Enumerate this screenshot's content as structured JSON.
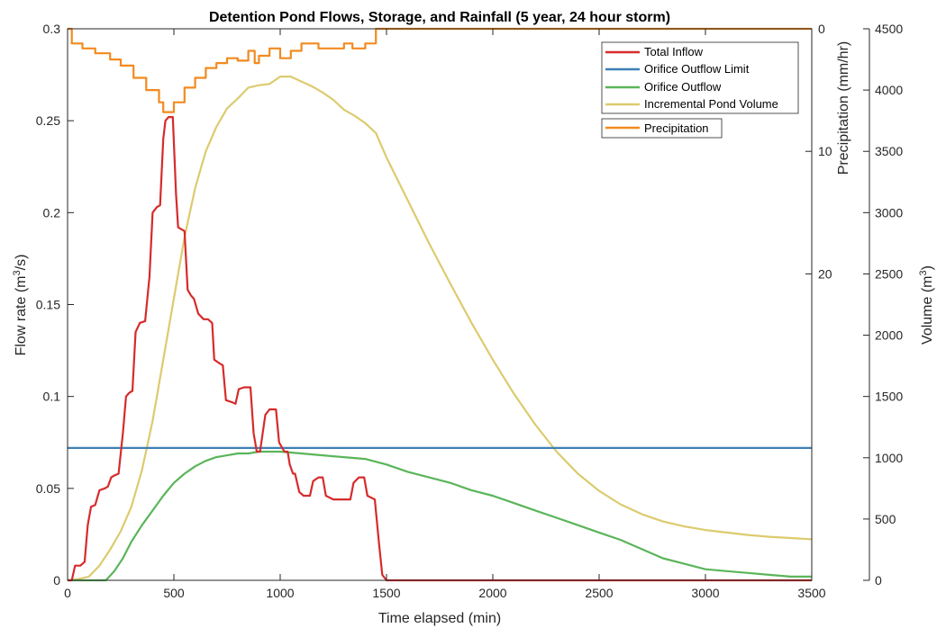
{
  "chart_data": {
    "type": "line",
    "title": "Detention Pond Flows, Storage, and Rainfall (5 year, 24 hour storm)",
    "xlabel": "Time elapsed (min)",
    "xlim": [
      0,
      3500
    ],
    "x_ticks": [
      "0",
      "500",
      "1000",
      "1500",
      "2000",
      "2500",
      "3000",
      "3500"
    ],
    "y_left": {
      "label_main": "Flow rate (m",
      "label_sup": "3",
      "label_tail": "/s)",
      "ylim": [
        0,
        0.3
      ],
      "ticks": [
        "0",
        "0.05",
        "0.1",
        "0.15",
        "0.2",
        "0.25",
        "0.3"
      ]
    },
    "y_precip": {
      "label": "Precipitation (mm/hr)",
      "ylim": [
        0,
        45
      ],
      "reversed": true,
      "ticks": [
        "0",
        "10",
        "20"
      ]
    },
    "y_right": {
      "label_main": "Volume (m",
      "label_sup": "3",
      "label_tail": ")",
      "ylim": [
        0,
        4500
      ],
      "ticks": [
        "0",
        "500",
        "1000",
        "1500",
        "2000",
        "2500",
        "3000",
        "3500",
        "4000",
        "4500"
      ]
    },
    "grid": false,
    "legend_position": "top-right",
    "legend_main": [
      "Total Inflow",
      "Orifice Outflow Limit",
      "Orifice Outflow",
      "Incremental Pond Volume"
    ],
    "legend_precip": [
      "Precipitation"
    ],
    "series": [
      {
        "name": "Total Inflow",
        "axis": "left",
        "color": "#d62b2b",
        "points": [
          [
            0,
            0
          ],
          [
            20,
            0
          ],
          [
            35,
            0.008
          ],
          [
            60,
            0.008
          ],
          [
            80,
            0.01
          ],
          [
            95,
            0.03
          ],
          [
            110,
            0.04
          ],
          [
            130,
            0.041
          ],
          [
            150,
            0.049
          ],
          [
            175,
            0.05
          ],
          [
            190,
            0.051
          ],
          [
            205,
            0.056
          ],
          [
            220,
            0.057
          ],
          [
            240,
            0.058
          ],
          [
            260,
            0.08
          ],
          [
            275,
            0.1
          ],
          [
            290,
            0.102
          ],
          [
            305,
            0.103
          ],
          [
            320,
            0.135
          ],
          [
            340,
            0.14
          ],
          [
            365,
            0.141
          ],
          [
            385,
            0.165
          ],
          [
            400,
            0.2
          ],
          [
            420,
            0.203
          ],
          [
            435,
            0.204
          ],
          [
            450,
            0.24
          ],
          [
            460,
            0.25
          ],
          [
            475,
            0.252
          ],
          [
            495,
            0.252
          ],
          [
            510,
            0.21
          ],
          [
            520,
            0.192
          ],
          [
            550,
            0.19
          ],
          [
            565,
            0.158
          ],
          [
            580,
            0.155
          ],
          [
            595,
            0.153
          ],
          [
            615,
            0.145
          ],
          [
            640,
            0.142
          ],
          [
            660,
            0.142
          ],
          [
            680,
            0.14
          ],
          [
            690,
            0.12
          ],
          [
            715,
            0.118
          ],
          [
            730,
            0.117
          ],
          [
            745,
            0.098
          ],
          [
            770,
            0.097
          ],
          [
            790,
            0.096
          ],
          [
            805,
            0.104
          ],
          [
            830,
            0.105
          ],
          [
            860,
            0.105
          ],
          [
            875,
            0.08
          ],
          [
            890,
            0.07
          ],
          [
            905,
            0.07
          ],
          [
            930,
            0.09
          ],
          [
            950,
            0.093
          ],
          [
            980,
            0.093
          ],
          [
            995,
            0.075
          ],
          [
            1020,
            0.07
          ],
          [
            1035,
            0.07
          ],
          [
            1045,
            0.063
          ],
          [
            1060,
            0.058
          ],
          [
            1070,
            0.058
          ],
          [
            1090,
            0.048
          ],
          [
            1110,
            0.046
          ],
          [
            1140,
            0.046
          ],
          [
            1155,
            0.054
          ],
          [
            1180,
            0.056
          ],
          [
            1200,
            0.056
          ],
          [
            1215,
            0.046
          ],
          [
            1250,
            0.044
          ],
          [
            1330,
            0.044
          ],
          [
            1345,
            0.053
          ],
          [
            1370,
            0.056
          ],
          [
            1395,
            0.056
          ],
          [
            1410,
            0.046
          ],
          [
            1445,
            0.044
          ],
          [
            1465,
            0.02
          ],
          [
            1480,
            0.003
          ],
          [
            1500,
            0
          ],
          [
            3500,
            0
          ]
        ]
      },
      {
        "name": "Orifice Outflow Limit",
        "axis": "left",
        "color": "#3e7fb5",
        "points": [
          [
            0,
            0.072
          ],
          [
            3500,
            0.072
          ]
        ]
      },
      {
        "name": "Orifice Outflow",
        "axis": "left",
        "color": "#5ab55a",
        "points": [
          [
            0,
            0
          ],
          [
            180,
            0
          ],
          [
            220,
            0.005
          ],
          [
            260,
            0.012
          ],
          [
            300,
            0.021
          ],
          [
            350,
            0.03
          ],
          [
            400,
            0.038
          ],
          [
            450,
            0.046
          ],
          [
            500,
            0.053
          ],
          [
            550,
            0.058
          ],
          [
            600,
            0.062
          ],
          [
            650,
            0.065
          ],
          [
            700,
            0.067
          ],
          [
            750,
            0.068
          ],
          [
            800,
            0.069
          ],
          [
            850,
            0.069
          ],
          [
            900,
            0.07
          ],
          [
            950,
            0.07
          ],
          [
            1000,
            0.07
          ],
          [
            1100,
            0.069
          ],
          [
            1200,
            0.068
          ],
          [
            1300,
            0.067
          ],
          [
            1400,
            0.066
          ],
          [
            1500,
            0.063
          ],
          [
            1600,
            0.059
          ],
          [
            1700,
            0.056
          ],
          [
            1800,
            0.053
          ],
          [
            1900,
            0.049
          ],
          [
            2000,
            0.046
          ],
          [
            2100,
            0.042
          ],
          [
            2200,
            0.038
          ],
          [
            2300,
            0.034
          ],
          [
            2400,
            0.03
          ],
          [
            2500,
            0.026
          ],
          [
            2600,
            0.022
          ],
          [
            2700,
            0.017
          ],
          [
            2800,
            0.012
          ],
          [
            2900,
            0.009
          ],
          [
            3000,
            0.006
          ],
          [
            3100,
            0.005
          ],
          [
            3200,
            0.004
          ],
          [
            3300,
            0.003
          ],
          [
            3400,
            0.002
          ],
          [
            3500,
            0.002
          ]
        ]
      },
      {
        "name": "Incremental Pond Volume",
        "axis": "right",
        "color": "#dccb6e",
        "points": [
          [
            0,
            0
          ],
          [
            50,
            10
          ],
          [
            100,
            30
          ],
          [
            150,
            120
          ],
          [
            200,
            250
          ],
          [
            250,
            400
          ],
          [
            300,
            600
          ],
          [
            350,
            900
          ],
          [
            400,
            1300
          ],
          [
            450,
            1800
          ],
          [
            500,
            2300
          ],
          [
            550,
            2800
          ],
          [
            600,
            3200
          ],
          [
            650,
            3500
          ],
          [
            700,
            3700
          ],
          [
            750,
            3850
          ],
          [
            800,
            3930
          ],
          [
            850,
            4020
          ],
          [
            900,
            4040
          ],
          [
            950,
            4050
          ],
          [
            1000,
            4110
          ],
          [
            1050,
            4110
          ],
          [
            1100,
            4070
          ],
          [
            1150,
            4030
          ],
          [
            1200,
            3980
          ],
          [
            1250,
            3920
          ],
          [
            1300,
            3840
          ],
          [
            1350,
            3790
          ],
          [
            1400,
            3730
          ],
          [
            1450,
            3650
          ],
          [
            1500,
            3450
          ],
          [
            1600,
            3100
          ],
          [
            1700,
            2750
          ],
          [
            1800,
            2420
          ],
          [
            1900,
            2100
          ],
          [
            2000,
            1800
          ],
          [
            2100,
            1520
          ],
          [
            2200,
            1270
          ],
          [
            2300,
            1050
          ],
          [
            2400,
            870
          ],
          [
            2500,
            730
          ],
          [
            2600,
            620
          ],
          [
            2700,
            540
          ],
          [
            2800,
            480
          ],
          [
            2900,
            440
          ],
          [
            3000,
            410
          ],
          [
            3100,
            390
          ],
          [
            3200,
            370
          ],
          [
            3300,
            355
          ],
          [
            3400,
            345
          ],
          [
            3500,
            335
          ]
        ]
      },
      {
        "name": "Precipitation",
        "axis": "precip",
        "color": "#f28a1f",
        "points": [
          [
            0,
            0
          ],
          [
            20,
            0
          ],
          [
            20,
            1.2
          ],
          [
            70,
            1.2
          ],
          [
            70,
            1.6
          ],
          [
            130,
            1.6
          ],
          [
            130,
            2
          ],
          [
            200,
            2
          ],
          [
            200,
            2.5
          ],
          [
            250,
            2.5
          ],
          [
            250,
            3
          ],
          [
            310,
            3
          ],
          [
            310,
            4
          ],
          [
            370,
            4
          ],
          [
            370,
            5
          ],
          [
            430,
            5
          ],
          [
            430,
            6
          ],
          [
            450,
            6
          ],
          [
            450,
            6.8
          ],
          [
            500,
            6.8
          ],
          [
            500,
            6
          ],
          [
            550,
            6
          ],
          [
            550,
            4.8
          ],
          [
            600,
            4.8
          ],
          [
            600,
            4
          ],
          [
            650,
            4
          ],
          [
            650,
            3.2
          ],
          [
            700,
            3.2
          ],
          [
            700,
            2.8
          ],
          [
            750,
            2.8
          ],
          [
            750,
            2.4
          ],
          [
            800,
            2.4
          ],
          [
            800,
            2.6
          ],
          [
            850,
            2.6
          ],
          [
            850,
            1.8
          ],
          [
            880,
            1.8
          ],
          [
            880,
            2.8
          ],
          [
            900,
            2.8
          ],
          [
            900,
            2.2
          ],
          [
            950,
            2.2
          ],
          [
            950,
            1.6
          ],
          [
            1000,
            1.6
          ],
          [
            1000,
            2.4
          ],
          [
            1050,
            2.4
          ],
          [
            1050,
            1.8
          ],
          [
            1100,
            1.8
          ],
          [
            1100,
            1.2
          ],
          [
            1180,
            1.2
          ],
          [
            1180,
            1.6
          ],
          [
            1300,
            1.6
          ],
          [
            1300,
            1.2
          ],
          [
            1340,
            1.2
          ],
          [
            1340,
            1.6
          ],
          [
            1400,
            1.6
          ],
          [
            1400,
            1.2
          ],
          [
            1450,
            1.2
          ],
          [
            1450,
            0
          ],
          [
            3500,
            0
          ]
        ]
      }
    ]
  }
}
